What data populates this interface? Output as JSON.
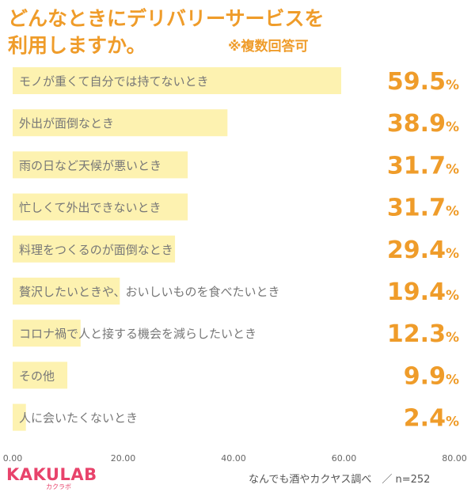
{
  "header": {
    "title_line1": "どんなときにデリバリーサービスを",
    "title_line2": "利用しますか。",
    "note": "※複数回答可"
  },
  "footer": {
    "logo": "KAKULAB",
    "logo_sub": "カクラボ",
    "source": "なんでも酒やカクヤス調べ　／ n=252"
  },
  "colors": {
    "bar": "#fdf2b0",
    "value": "#ef9c2a",
    "label": "#777777",
    "title": "#ef9c2a"
  },
  "chart_data": {
    "type": "bar",
    "orientation": "horizontal",
    "categories": [
      "モノが重くて自分では持てないとき",
      "外出が面倒なとき",
      "雨の日など天候が悪いとき",
      "忙しくて外出できないとき",
      "料理をつくるのが面倒なとき",
      "贅沢したいときや、おいしいものを食べたいとき",
      "コロナ禍で人と接する機会を減らしたいとき",
      "その他",
      "人に会いたくないとき"
    ],
    "values": [
      59.5,
      38.9,
      31.7,
      31.7,
      29.4,
      19.4,
      12.3,
      9.9,
      2.4
    ],
    "value_labels": [
      "59.5",
      "38.9",
      "31.7",
      "31.7",
      "29.4",
      "19.4",
      "12.3",
      "9.9",
      "2.4"
    ],
    "value_unit": "%",
    "xlim": [
      0,
      80
    ],
    "x_ticks": [
      "0.00",
      "20.00",
      "40.00",
      "60.00",
      "80.00"
    ],
    "x_tick_values": [
      0,
      20,
      40,
      60,
      80
    ],
    "grid": false
  }
}
